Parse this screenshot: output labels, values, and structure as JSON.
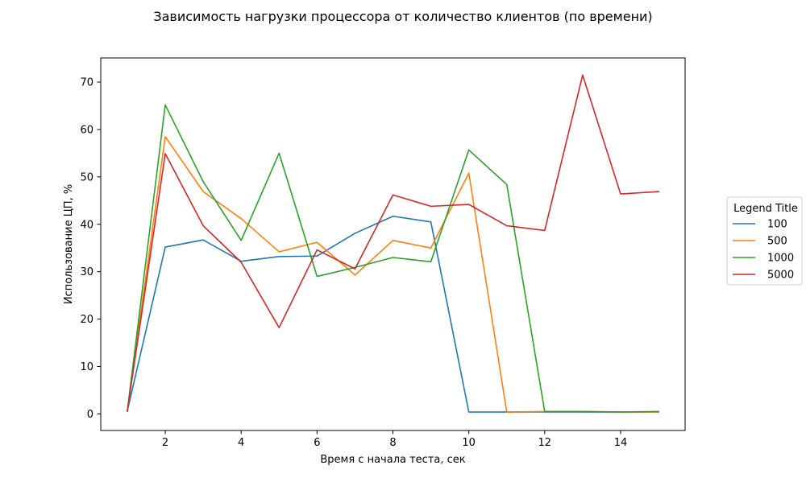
{
  "chart_data": {
    "type": "line",
    "title": "Зависимость нагрузки процессора от количество клиентов (по времени)",
    "xlabel": "Время с начала теста, сек",
    "ylabel": "Использование ЦП, %",
    "xlim": [
      0.3,
      15.7
    ],
    "ylim": [
      -3.5,
      75.1
    ],
    "xticks": [
      2,
      4,
      6,
      8,
      10,
      12,
      14
    ],
    "yticks": [
      0,
      10,
      20,
      30,
      40,
      50,
      60,
      70
    ],
    "grid": false,
    "legend": {
      "title": "Legend Title",
      "placement": "right-outside"
    },
    "x": [
      1,
      2,
      3,
      4,
      5,
      6,
      7,
      8,
      9,
      10,
      11,
      12,
      13,
      14,
      15
    ],
    "series": [
      {
        "name": "100",
        "color": "#1f77b4",
        "values": [
          0.6,
          35.2,
          36.7,
          32.2,
          33.2,
          33.3,
          38.1,
          41.7,
          40.5,
          0.4,
          0.4,
          0.4,
          0.4,
          0.4,
          0.4
        ]
      },
      {
        "name": "500",
        "color": "#ff7f0e",
        "values": [
          0.6,
          58.5,
          46.9,
          41.2,
          34.2,
          36.2,
          29.3,
          36.6,
          35.0,
          50.8,
          0.4,
          0.5,
          0.5,
          0.4,
          0.4
        ]
      },
      {
        "name": "1000",
        "color": "#2ca02c",
        "values": [
          0.6,
          65.2,
          49.0,
          36.6,
          55.0,
          29.0,
          30.9,
          33.0,
          32.1,
          55.7,
          48.4,
          0.5,
          0.5,
          0.4,
          0.5
        ]
      },
      {
        "name": "5000",
        "color": "#d62728",
        "values": [
          0.6,
          54.9,
          39.7,
          32.0,
          18.2,
          34.6,
          30.6,
          46.2,
          43.8,
          44.2,
          39.7,
          38.7,
          71.5,
          46.4,
          46.9
        ]
      }
    ]
  }
}
